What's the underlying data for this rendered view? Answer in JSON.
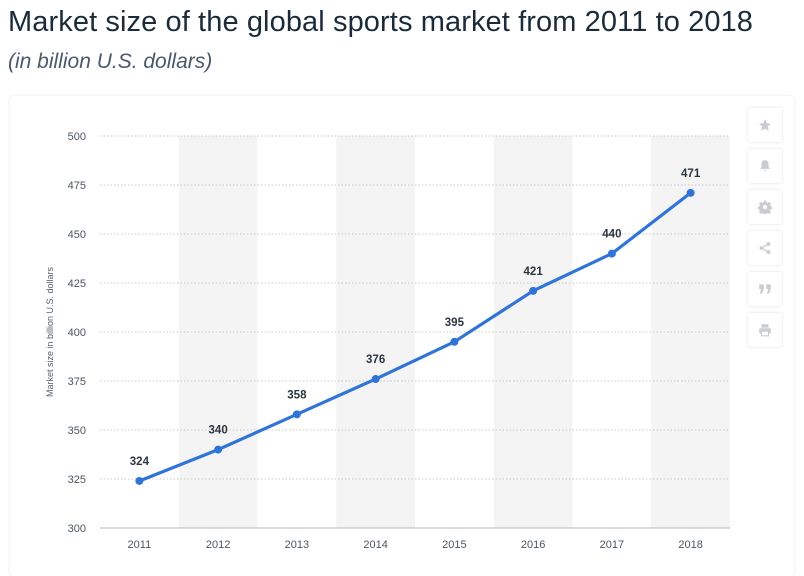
{
  "header": {
    "title": "Market size of the global sports market from 2011 to 2018",
    "subtitle": "(in billion U.S. dollars)"
  },
  "toolbar": {
    "buttons": [
      {
        "name": "favorite-button",
        "icon": "star-icon"
      },
      {
        "name": "notification-button",
        "icon": "bell-icon"
      },
      {
        "name": "settings-button",
        "icon": "gear-icon"
      },
      {
        "name": "share-button",
        "icon": "share-icon"
      },
      {
        "name": "cite-button",
        "icon": "quote-icon"
      },
      {
        "name": "print-button",
        "icon": "print-icon"
      }
    ]
  },
  "colors": {
    "line": "#2f74d6",
    "band": "#f4f4f4",
    "grid": "#c9c9c9"
  },
  "chart_data": {
    "type": "line",
    "title": "Market size of the global sports market from 2011 to 2018",
    "subtitle": "(in billion U.S. dollars)",
    "xlabel": "",
    "ylabel": "Market size in billion U.S. dollars",
    "categories": [
      "2011",
      "2012",
      "2013",
      "2014",
      "2015",
      "2016",
      "2017",
      "2018"
    ],
    "series": [
      {
        "name": "Market size",
        "values": [
          324,
          340,
          358,
          376,
          395,
          421,
          440,
          471
        ]
      }
    ],
    "ylim": [
      300,
      500
    ],
    "yticks": [
      300,
      325,
      350,
      375,
      400,
      425,
      450,
      475,
      500
    ],
    "grid": true,
    "data_labels": true
  }
}
